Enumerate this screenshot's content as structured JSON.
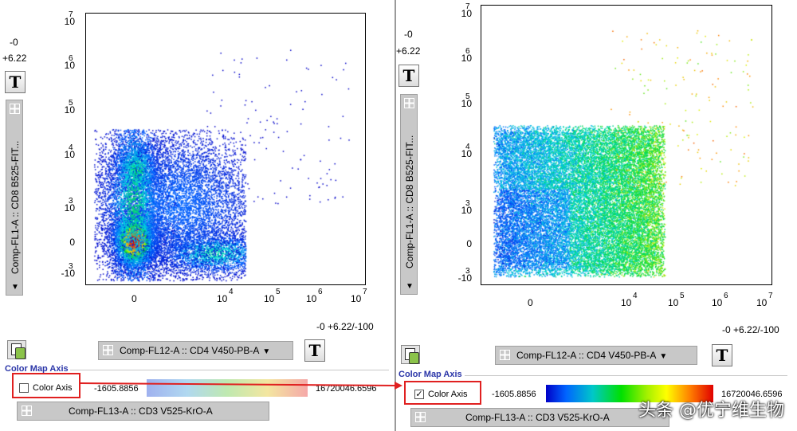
{
  "panels": [
    {
      "y_scale_label": "-0\n+6.22",
      "y_scale_top": "-0",
      "y_scale_bottom": "+6.22",
      "y_axis_param": "Comp-FL1-A :: CD8 B525-FIT...",
      "y_ticks": [
        {
          "base": "10",
          "exp": "7"
        },
        {
          "base": "10",
          "exp": "6"
        },
        {
          "base": "10",
          "exp": "5"
        },
        {
          "base": "10",
          "exp": "4"
        },
        {
          "base": "10",
          "exp": "3"
        },
        {
          "base": "0",
          "exp": ""
        },
        {
          "base": "-10",
          "exp": "3"
        }
      ],
      "x_ticks": [
        {
          "base": "0",
          "exp": ""
        },
        {
          "base": "10",
          "exp": "4"
        },
        {
          "base": "10",
          "exp": "5"
        },
        {
          "base": "10",
          "exp": "6"
        },
        {
          "base": "10",
          "exp": "7"
        }
      ],
      "x_scale_label": "-0 +6.22/-100",
      "x_axis_param": "Comp-FL12-A :: CD4 V450-PB-A",
      "t_button": "T",
      "color_map_title": "Color Map Axis",
      "color_axis_label": "Color Axis",
      "color_axis_checked": false,
      "range_min": "-1605.8856",
      "range_max": "16720046.6596",
      "color_param": "Comp-FL13-A :: CD3 V525-KrO-A"
    },
    {
      "y_scale_top": "-0",
      "y_scale_bottom": "+6.22",
      "y_axis_param": "Comp-FL1-A :: CD8 B525-FIT...",
      "y_ticks": [
        {
          "base": "10",
          "exp": "7"
        },
        {
          "base": "10",
          "exp": "6"
        },
        {
          "base": "10",
          "exp": "5"
        },
        {
          "base": "10",
          "exp": "4"
        },
        {
          "base": "10",
          "exp": "3"
        },
        {
          "base": "0",
          "exp": ""
        },
        {
          "base": "-10",
          "exp": "3"
        }
      ],
      "x_ticks": [
        {
          "base": "0",
          "exp": ""
        },
        {
          "base": "10",
          "exp": "4"
        },
        {
          "base": "10",
          "exp": "5"
        },
        {
          "base": "10",
          "exp": "6"
        },
        {
          "base": "10",
          "exp": "7"
        }
      ],
      "x_scale_label": "-0 +6.22/-100",
      "x_axis_param": "Comp-FL12-A :: CD4 V450-PB-A",
      "t_button": "T",
      "color_map_title": "Color Map Axis",
      "color_axis_label": "Color Axis",
      "color_axis_checked": true,
      "check_mark": "✓",
      "range_min": "-1605.8856",
      "range_max": "16720046.6596",
      "color_param": "Comp-FL13-A :: CD3 V525-KrO-A"
    }
  ],
  "dropdown_arrow": "▼",
  "watermark": "头条 @优宁维生物",
  "colors": {
    "panel_divider": "#9a9a9a",
    "highlight_box": "#e02020",
    "arrow": "#e02020",
    "dropdown_bg": "#c8c8c8",
    "color_map_title": "#2a35a8"
  }
}
